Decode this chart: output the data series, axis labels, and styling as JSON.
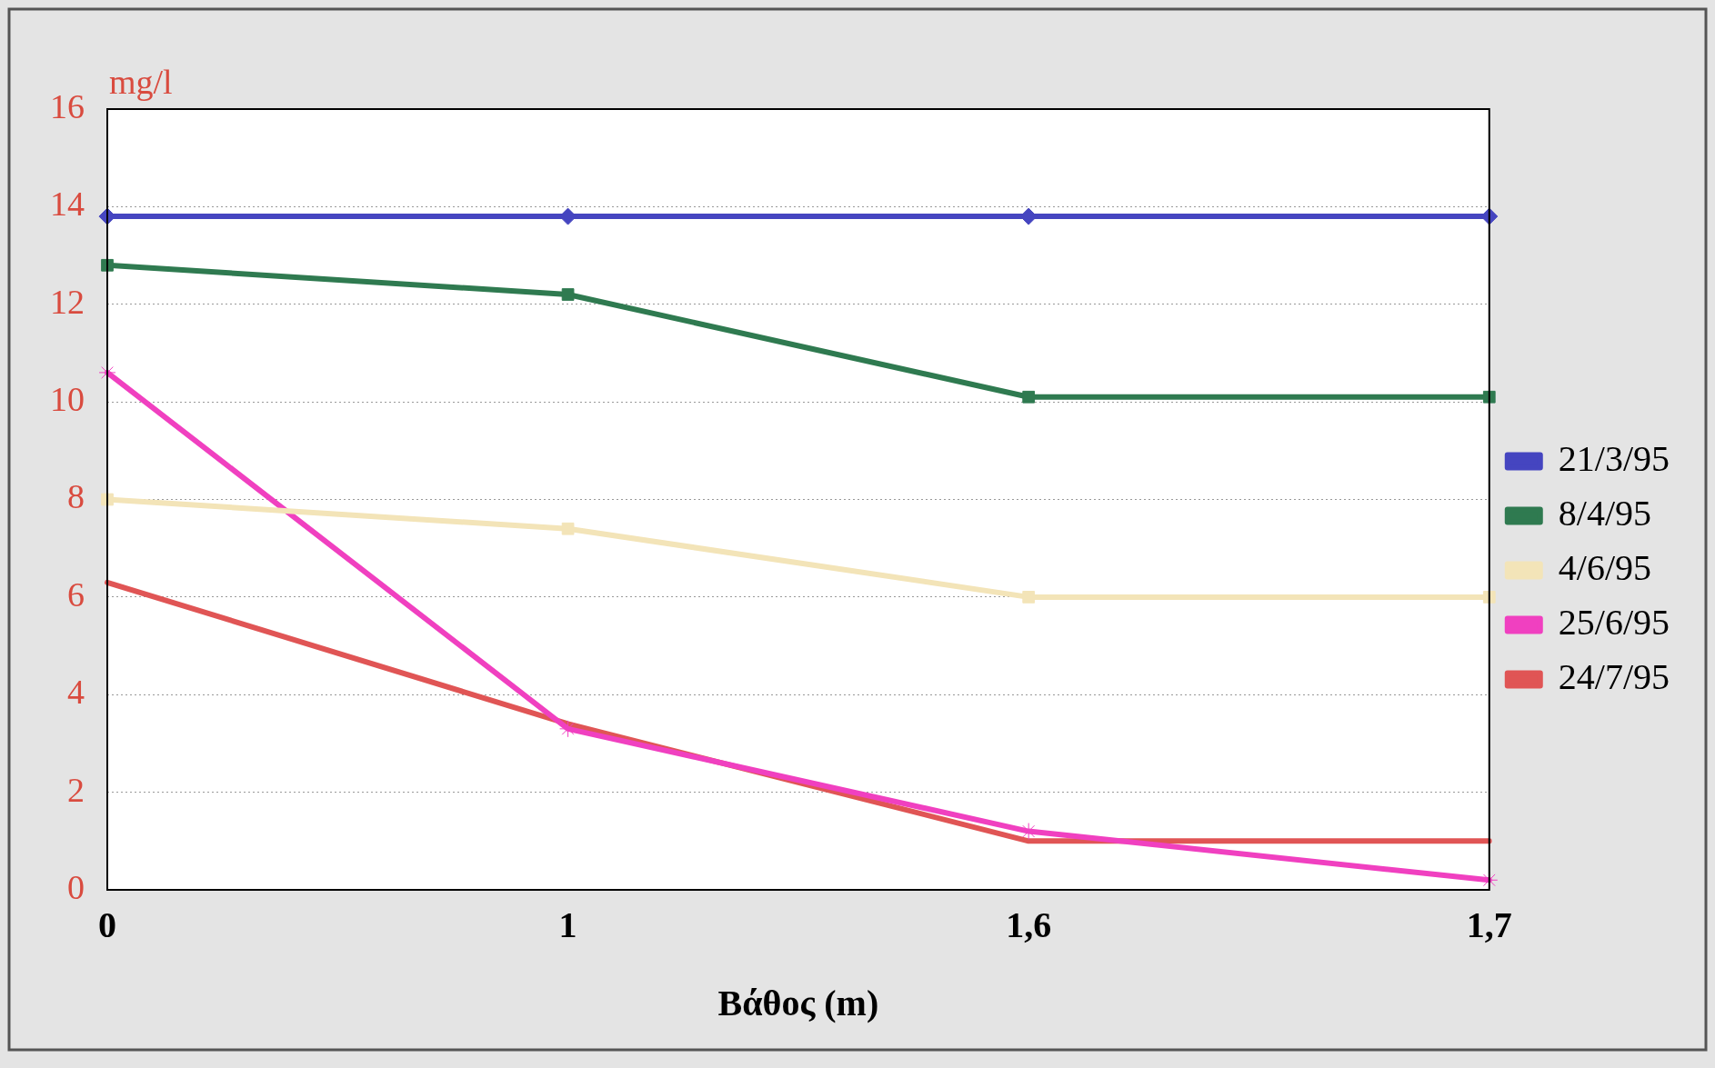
{
  "chart_data": {
    "type": "line",
    "ylabel": "mg/l",
    "xlabel": "Βάθος (m)",
    "categories": [
      "0",
      "1",
      "1,6",
      "1,7"
    ],
    "ylim": [
      0,
      16
    ],
    "yticks": [
      0,
      2,
      4,
      6,
      8,
      10,
      12,
      14,
      16
    ],
    "grid": "y",
    "legend": "right",
    "line_style": "solid",
    "series": [
      {
        "name": "21/3/95",
        "color": "#4545c0",
        "marker": "diamond",
        "values": [
          13.8,
          13.8,
          13.8,
          13.8
        ]
      },
      {
        "name": "8/4/95",
        "color": "#2f7a50",
        "marker": "square",
        "values": [
          12.8,
          12.2,
          10.1,
          10.1
        ]
      },
      {
        "name": "4/6/95",
        "color": "#f3e4b8",
        "marker": "square",
        "values": [
          8.0,
          7.4,
          6.0,
          6.0
        ]
      },
      {
        "name": "25/6/95",
        "color": "#f040c0",
        "marker": "cross",
        "values": [
          10.6,
          3.3,
          1.2,
          0.2
        ]
      },
      {
        "name": "24/7/95",
        "color": "#e05555",
        "marker": "none",
        "values": [
          6.3,
          3.4,
          1.0,
          1.0
        ]
      }
    ]
  }
}
